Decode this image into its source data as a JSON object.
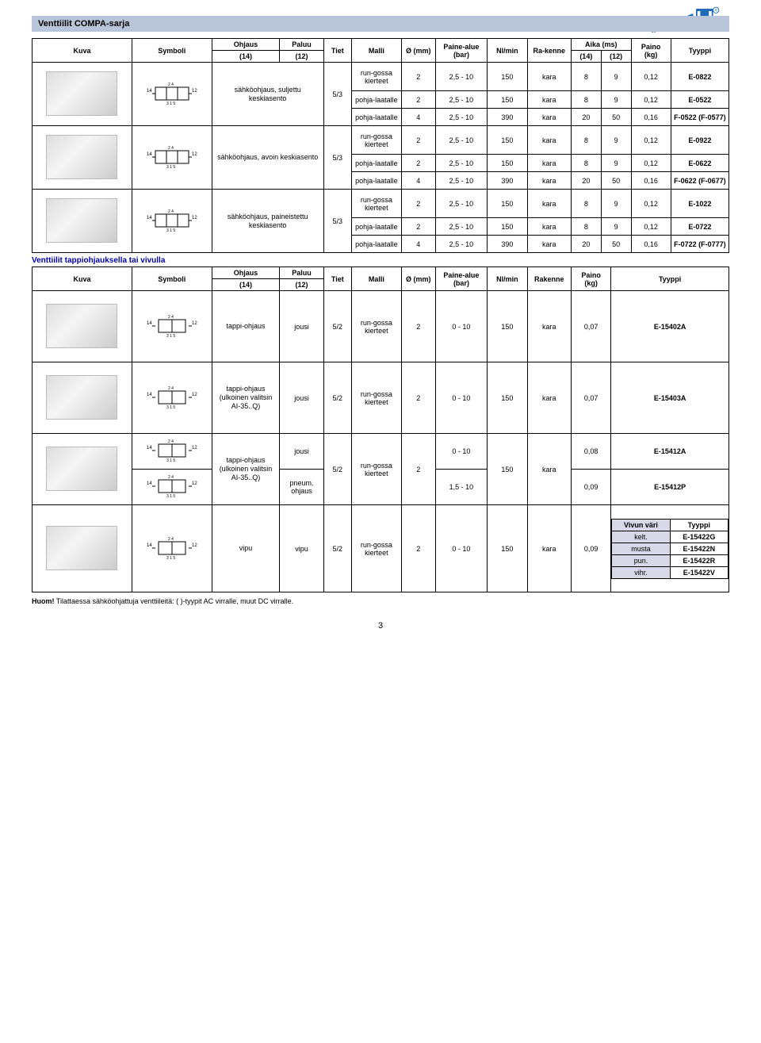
{
  "header": {
    "title": "Venttiilit COMPA-sarja"
  },
  "cols": {
    "kuva": "Kuva",
    "symboli": "Symboli",
    "ohjaus": "Ohjaus",
    "o14": "(14)",
    "paluu": "Paluu",
    "p12": "(12)",
    "tiet": "Tiet",
    "malli": "Malli",
    "dmm": "Ø (mm)",
    "paine": "Paine-alue (bar)",
    "nlmin": "Nl/min",
    "rakenne": "Ra-kenne",
    "aika": "Aika (ms)",
    "a14": "(14)",
    "a12": "(12)",
    "paino": "Paino (kg)",
    "tyyppi": "Tyyppi",
    "rakenne2": "Rakenne",
    "vivun": "Vivun väri"
  },
  "block1": [
    {
      "desc": "sähköohjaus, suljettu keskiasento",
      "tiet": "5/3",
      "rows": [
        {
          "malli": "run-gossa kierteet",
          "d": "2",
          "paine": "2,5 - 10",
          "nl": "150",
          "rak": "kara",
          "a14": "8",
          "a12": "9",
          "paino": "0,12",
          "tyyppi": "E-0822"
        },
        {
          "malli": "pohja-laatalle",
          "d": "2",
          "paine": "2,5 - 10",
          "nl": "150",
          "rak": "kara",
          "a14": "8",
          "a12": "9",
          "paino": "0,12",
          "tyyppi": "E-0522"
        },
        {
          "malli": "pohja-laatalle",
          "d": "4",
          "paine": "2,5 - 10",
          "nl": "390",
          "rak": "kara",
          "a14": "20",
          "a12": "50",
          "paino": "0,16",
          "tyyppi": "F-0522 (F-0577)"
        }
      ]
    },
    {
      "desc": "sähköohjaus, avoin keskiasento",
      "tiet": "5/3",
      "rows": [
        {
          "malli": "run-gossa kierteet",
          "d": "2",
          "paine": "2,5 - 10",
          "nl": "150",
          "rak": "kara",
          "a14": "8",
          "a12": "9",
          "paino": "0,12",
          "tyyppi": "E-0922"
        },
        {
          "malli": "pohja-laatalle",
          "d": "2",
          "paine": "2,5 - 10",
          "nl": "150",
          "rak": "kara",
          "a14": "8",
          "a12": "9",
          "paino": "0,12",
          "tyyppi": "E-0622"
        },
        {
          "malli": "pohja-laatalle",
          "d": "4",
          "paine": "2,5 - 10",
          "nl": "390",
          "rak": "kara",
          "a14": "20",
          "a12": "50",
          "paino": "0,16",
          "tyyppi": "F-0622 (F-0677)"
        }
      ]
    },
    {
      "desc": "sähköohjaus, paineistettu keskiasento",
      "tiet": "5/3",
      "rows": [
        {
          "malli": "run-gossa kierteet",
          "d": "2",
          "paine": "2,5 - 10",
          "nl": "150",
          "rak": "kara",
          "a14": "8",
          "a12": "9",
          "paino": "0,12",
          "tyyppi": "E-1022"
        },
        {
          "malli": "pohja-laatalle",
          "d": "2",
          "paine": "2,5 - 10",
          "nl": "150",
          "rak": "kara",
          "a14": "8",
          "a12": "9",
          "paino": "0,12",
          "tyyppi": "E-0722"
        },
        {
          "malli": "pohja-laatalle",
          "d": "4",
          "paine": "2,5 - 10",
          "nl": "390",
          "rak": "kara",
          "a14": "20",
          "a12": "50",
          "paino": "0,16",
          "tyyppi": "F-0722 (F-0777)"
        }
      ]
    }
  ],
  "section2title": "Venttiilit tappiohjauksella tai vivulla",
  "block2": [
    {
      "desc": "tappi-ohjaus",
      "paluu": "jousi",
      "tiet": "5/2",
      "malli": "run-gossa kierteet",
      "d": "2",
      "paine": "0 - 10",
      "nl": "150",
      "rak": "kara",
      "paino": "0,07",
      "tyyppi": "E-15402A"
    },
    {
      "desc": "tappi-ohjaus (ulkoinen valitsin AI-35..Q)",
      "paluu": "jousi",
      "tiet": "5/2",
      "malli": "run-gossa kierteet",
      "d": "2",
      "paine": "0 - 10",
      "nl": "150",
      "rak": "kara",
      "paino": "0,07",
      "tyyppi": "E-15403A"
    }
  ],
  "block3": {
    "desc": "tappi-ohjaus (ulkoinen valitsin AI-35..Q)",
    "paluu1": "jousi",
    "paluu2": "pneum. ohjaus",
    "tiet": "5/2",
    "malli": "run-gossa kierteet",
    "d": "2",
    "r1": {
      "paine": "0 - 10",
      "paino": "0,08",
      "tyyppi": "E-15412A"
    },
    "r2": {
      "paine": "1,5 - 10",
      "paino": "0,09",
      "tyyppi": "E-15412P"
    },
    "nl": "150",
    "rak": "kara"
  },
  "block4": {
    "desc": "vipu",
    "paluu": "vipu",
    "tiet": "5/2",
    "malli": "run-gossa kierteet",
    "d": "2",
    "paine": "0 - 10",
    "nl": "150",
    "rak": "kara",
    "paino": "0,09",
    "variants": [
      {
        "vari": "kelt.",
        "tyyppi": "E-15422G"
      },
      {
        "vari": "musta",
        "tyyppi": "E-15422N"
      },
      {
        "vari": "pun.",
        "tyyppi": "E-15422R"
      },
      {
        "vari": "vihr.",
        "tyyppi": "E-15422V"
      }
    ]
  },
  "footnote": "Huom! Tilattaessa sähköohjattuja venttiileitä: ( )-tyypit AC virralle, muut DC virralle.",
  "pagenum": "3"
}
